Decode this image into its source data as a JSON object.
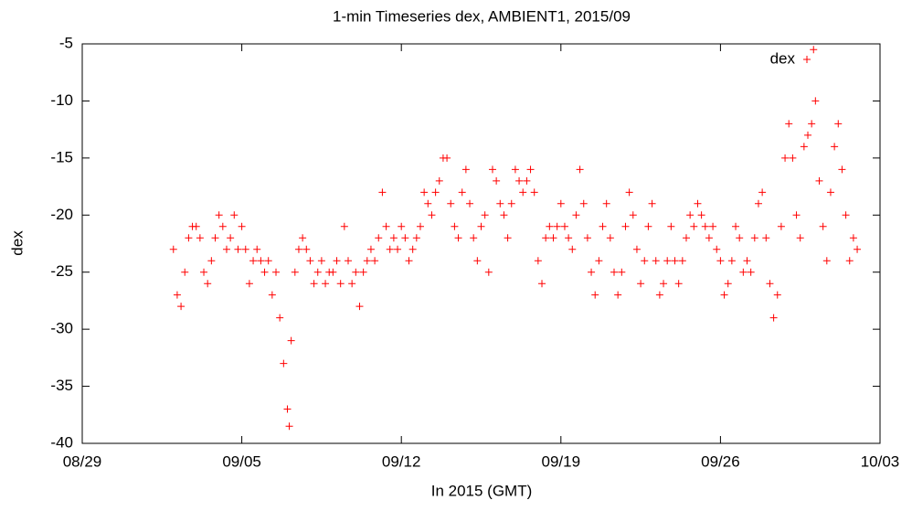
{
  "chart_data": {
    "type": "scatter",
    "title": "1-min Timeseries dex, AMBIENT1, 2015/09",
    "xlabel": "In 2015 (GMT)",
    "ylabel": "dex",
    "legend": "top-right",
    "xlim": [
      "2015-08-29 00:00",
      "2015-10-03 00:00"
    ],
    "xticks": [
      {
        "value": "2015-08-29 00:00",
        "label": "08/29"
      },
      {
        "value": "2015-09-05 00:00",
        "label": "09/05"
      },
      {
        "value": "2015-09-12 00:00",
        "label": "09/12"
      },
      {
        "value": "2015-09-19 00:00",
        "label": "09/19"
      },
      {
        "value": "2015-09-26 00:00",
        "label": "09/26"
      },
      {
        "value": "2015-10-03 00:00",
        "label": "10/03"
      }
    ],
    "ylim": [
      -40,
      -5
    ],
    "yticks": [
      -5,
      -10,
      -15,
      -20,
      -25,
      -30,
      -35,
      -40
    ],
    "series": [
      {
        "name": "dex",
        "color": "#ff0000",
        "x": [
          "2015-09-02 00:00",
          "2015-09-02 04:00",
          "2015-09-02 08:00",
          "2015-09-02 12:00",
          "2015-09-02 16:00",
          "2015-09-02 20:00",
          "2015-09-03 00:00",
          "2015-09-03 04:00",
          "2015-09-03 08:00",
          "2015-09-03 12:00",
          "2015-09-03 16:00",
          "2015-09-03 20:00",
          "2015-09-04 00:00",
          "2015-09-04 04:00",
          "2015-09-04 08:00",
          "2015-09-04 12:00",
          "2015-09-04 16:00",
          "2015-09-04 20:00",
          "2015-09-05 00:00",
          "2015-09-05 04:00",
          "2015-09-05 08:00",
          "2015-09-05 12:00",
          "2015-09-05 16:00",
          "2015-09-05 20:00",
          "2015-09-06 00:00",
          "2015-09-06 04:00",
          "2015-09-06 08:00",
          "2015-09-06 12:00",
          "2015-09-06 16:00",
          "2015-09-06 20:00",
          "2015-09-07 00:00",
          "2015-09-07 02:00",
          "2015-09-07 04:00",
          "2015-09-07 08:00",
          "2015-09-07 12:00",
          "2015-09-07 16:00",
          "2015-09-07 20:00",
          "2015-09-08 00:00",
          "2015-09-08 04:00",
          "2015-09-08 08:00",
          "2015-09-08 12:00",
          "2015-09-08 16:00",
          "2015-09-08 20:00",
          "2015-09-09 00:00",
          "2015-09-09 04:00",
          "2015-09-09 08:00",
          "2015-09-09 12:00",
          "2015-09-09 16:00",
          "2015-09-09 20:00",
          "2015-09-10 00:00",
          "2015-09-10 04:00",
          "2015-09-10 08:00",
          "2015-09-10 12:00",
          "2015-09-10 16:00",
          "2015-09-10 20:00",
          "2015-09-11 00:00",
          "2015-09-11 04:00",
          "2015-09-11 08:00",
          "2015-09-11 12:00",
          "2015-09-11 16:00",
          "2015-09-11 20:00",
          "2015-09-12 00:00",
          "2015-09-12 04:00",
          "2015-09-12 08:00",
          "2015-09-12 12:00",
          "2015-09-12 16:00",
          "2015-09-12 20:00",
          "2015-09-13 00:00",
          "2015-09-13 04:00",
          "2015-09-13 08:00",
          "2015-09-13 12:00",
          "2015-09-13 16:00",
          "2015-09-13 20:00",
          "2015-09-14 00:00",
          "2015-09-14 04:00",
          "2015-09-14 08:00",
          "2015-09-14 12:00",
          "2015-09-14 16:00",
          "2015-09-14 20:00",
          "2015-09-15 00:00",
          "2015-09-15 04:00",
          "2015-09-15 08:00",
          "2015-09-15 12:00",
          "2015-09-15 16:00",
          "2015-09-15 20:00",
          "2015-09-16 00:00",
          "2015-09-16 04:00",
          "2015-09-16 08:00",
          "2015-09-16 12:00",
          "2015-09-16 16:00",
          "2015-09-16 20:00",
          "2015-09-17 00:00",
          "2015-09-17 04:00",
          "2015-09-17 08:00",
          "2015-09-17 12:00",
          "2015-09-17 16:00",
          "2015-09-17 20:00",
          "2015-09-18 00:00",
          "2015-09-18 04:00",
          "2015-09-18 08:00",
          "2015-09-18 12:00",
          "2015-09-18 16:00",
          "2015-09-18 20:00",
          "2015-09-19 00:00",
          "2015-09-19 04:00",
          "2015-09-19 08:00",
          "2015-09-19 12:00",
          "2015-09-19 16:00",
          "2015-09-19 20:00",
          "2015-09-20 00:00",
          "2015-09-20 04:00",
          "2015-09-20 08:00",
          "2015-09-20 12:00",
          "2015-09-20 16:00",
          "2015-09-20 20:00",
          "2015-09-21 00:00",
          "2015-09-21 04:00",
          "2015-09-21 08:00",
          "2015-09-21 12:00",
          "2015-09-21 16:00",
          "2015-09-21 20:00",
          "2015-09-22 00:00",
          "2015-09-22 04:00",
          "2015-09-22 08:00",
          "2015-09-22 12:00",
          "2015-09-22 16:00",
          "2015-09-22 20:00",
          "2015-09-23 00:00",
          "2015-09-23 04:00",
          "2015-09-23 08:00",
          "2015-09-23 12:00",
          "2015-09-23 16:00",
          "2015-09-23 20:00",
          "2015-09-24 00:00",
          "2015-09-24 04:00",
          "2015-09-24 08:00",
          "2015-09-24 12:00",
          "2015-09-24 16:00",
          "2015-09-24 20:00",
          "2015-09-25 00:00",
          "2015-09-25 04:00",
          "2015-09-25 08:00",
          "2015-09-25 12:00",
          "2015-09-25 16:00",
          "2015-09-25 20:00",
          "2015-09-26 00:00",
          "2015-09-26 04:00",
          "2015-09-26 08:00",
          "2015-09-26 12:00",
          "2015-09-26 16:00",
          "2015-09-26 20:00",
          "2015-09-27 00:00",
          "2015-09-27 04:00",
          "2015-09-27 08:00",
          "2015-09-27 12:00",
          "2015-09-27 16:00",
          "2015-09-27 20:00",
          "2015-09-28 00:00",
          "2015-09-28 04:00",
          "2015-09-28 08:00",
          "2015-09-28 12:00",
          "2015-09-28 16:00",
          "2015-09-28 20:00",
          "2015-09-29 00:00",
          "2015-09-29 04:00",
          "2015-09-29 08:00",
          "2015-09-29 12:00",
          "2015-09-29 16:00",
          "2015-09-29 20:00",
          "2015-09-30 00:00",
          "2015-09-30 02:00",
          "2015-09-30 04:00",
          "2015-09-30 08:00",
          "2015-09-30 12:00",
          "2015-09-30 16:00",
          "2015-09-30 20:00",
          "2015-10-01 00:00",
          "2015-10-01 04:00",
          "2015-10-01 08:00",
          "2015-10-01 12:00",
          "2015-10-01 16:00",
          "2015-10-01 20:00",
          "2015-10-02 00:00"
        ],
        "values": [
          -23,
          -27,
          -28,
          -25,
          -22,
          -21,
          -21,
          -22,
          -25,
          -26,
          -24,
          -22,
          -20,
          -21,
          -23,
          -22,
          -20,
          -23,
          -21,
          -23,
          -26,
          -24,
          -23,
          -24,
          -25,
          -24,
          -27,
          -25,
          -29,
          -33,
          -37,
          -38.5,
          -31,
          -25,
          -23,
          -22,
          -23,
          -24,
          -26,
          -25,
          -24,
          -26,
          -25,
          -25,
          -24,
          -26,
          -21,
          -24,
          -26,
          -25,
          -28,
          -25,
          -24,
          -23,
          -24,
          -22,
          -18,
          -21,
          -23,
          -22,
          -23,
          -21,
          -22,
          -24,
          -23,
          -22,
          -21,
          -18,
          -19,
          -20,
          -18,
          -17,
          -15,
          -15,
          -19,
          -21,
          -22,
          -18,
          -16,
          -19,
          -22,
          -24,
          -21,
          -20,
          -25,
          -16,
          -17,
          -19,
          -20,
          -22,
          -19,
          -16,
          -17,
          -18,
          -17,
          -16,
          -18,
          -24,
          -26,
          -22,
          -21,
          -22,
          -21,
          -19,
          -21,
          -22,
          -23,
          -20,
          -16,
          -19,
          -22,
          -25,
          -27,
          -24,
          -21,
          -19,
          -22,
          -25,
          -27,
          -25,
          -21,
          -18,
          -20,
          -23,
          -26,
          -24,
          -21,
          -19,
          -24,
          -27,
          -26,
          -24,
          -21,
          -24,
          -26,
          -24,
          -22,
          -20,
          -21,
          -19,
          -20,
          -21,
          -22,
          -21,
          -23,
          -24,
          -27,
          -26,
          -24,
          -21,
          -22,
          -25,
          -24,
          -25,
          -22,
          -19,
          -18,
          -22,
          -26,
          -29,
          -27,
          -21,
          -15,
          -12,
          -15,
          -20,
          -22,
          -14,
          -13,
          -12,
          -5.5,
          -10,
          -17,
          -21,
          -24,
          -18,
          -14,
          -12,
          -16,
          -20,
          -24,
          -22,
          -23
        ]
      }
    ]
  }
}
